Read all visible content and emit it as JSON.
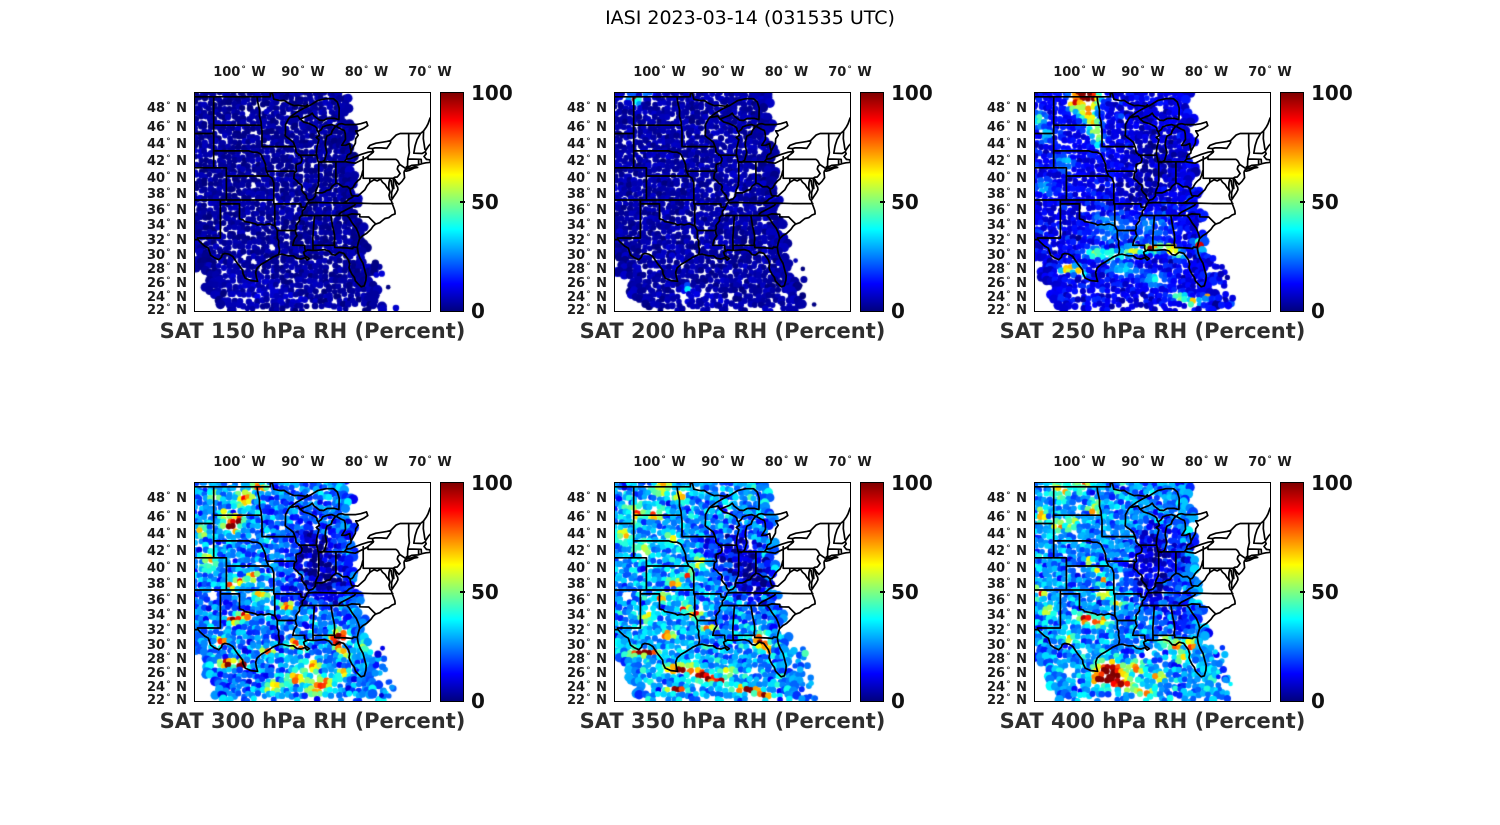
{
  "figure": {
    "title": "IASI 2023-03-14 (031535 UTC)",
    "background": "#ffffff",
    "text_color": "#000000",
    "border_color": "#000000"
  },
  "chart_data": {
    "type": "heatmap",
    "layout": "2 rows x 3 columns of geographic map panels",
    "projection": "mercator",
    "extent": {
      "lon_min": -107,
      "lon_max": -70,
      "lat_min": 21.6,
      "lat_max": 49.4
    },
    "lon_ticks": [
      100,
      90,
      80,
      70
    ],
    "lon_hemisphere": "W",
    "lat_ticks": [
      48,
      46,
      44,
      42,
      40,
      38,
      36,
      34,
      32,
      30,
      28,
      26,
      24,
      22
    ],
    "lat_hemisphere": "N",
    "units": "Percent",
    "colorbar": {
      "min": 0,
      "max": 100,
      "tick_labels": [
        "100",
        "50",
        "0"
      ],
      "colormap": "jet",
      "stops": [
        [
          0,
          "#00007f"
        ],
        [
          0.125,
          "#0000ff"
        ],
        [
          0.375,
          "#00ffff"
        ],
        [
          0.625,
          "#ffff00"
        ],
        [
          0.875,
          "#ff0000"
        ],
        [
          1,
          "#7f0000"
        ]
      ]
    },
    "swath": {
      "left_edge": {
        "a": -103.3,
        "b": -0.55,
        "c": 0.006
      },
      "right_edge": {
        "a": -77.8,
        "b": -0.31,
        "c": 0.0047
      },
      "bottom_lat": 21.8,
      "wave_amp": 0.7,
      "wave_freq": 1.9,
      "dot_spacing": 4.8,
      "dropout": 0.03
    },
    "panels": [
      {
        "level_hpa": "150",
        "title": "SAT 150 hPa RH (Percent)",
        "seed": 11,
        "base": 3,
        "noise": 1.5,
        "outliers": 8,
        "holes": [],
        "blobs": [
          [
            -97,
            24.5,
            3,
            1.5,
            5
          ],
          [
            -92,
            23.5,
            2.5,
            1,
            4
          ],
          [
            -101,
            26,
            2,
            1,
            4
          ]
        ]
      },
      {
        "level_hpa": "200",
        "title": "SAT 200 hPa RH (Percent)",
        "seed": 22,
        "base": 4,
        "noise": 2,
        "outliers": 8,
        "holes": [],
        "blobs": [
          [
            -104.8,
            49,
            0.9,
            0.4,
            40
          ],
          [
            -103.9,
            48.7,
            0.35,
            0.25,
            85
          ],
          [
            -103.1,
            48.5,
            0.45,
            0.3,
            60
          ],
          [
            -101.6,
            49.2,
            0.8,
            0.3,
            35
          ],
          [
            -95.8,
            25,
            0.35,
            0.3,
            80
          ],
          [
            -94.5,
            23.8,
            2,
            0.8,
            6
          ],
          [
            -90.5,
            23.2,
            1.5,
            0.7,
            5
          ]
        ]
      },
      {
        "level_hpa": "250",
        "title": "SAT 250 hPa RH (Percent)",
        "seed": 33,
        "base": 11,
        "noise": 6,
        "outliers": 22,
        "holes": [
          [
            -100.2,
            24.2,
            0.6
          ]
        ],
        "blobs": [
          [
            -99.6,
            49.5,
            1.7,
            0.8,
            95
          ],
          [
            -98.2,
            48.7,
            1.3,
            0.8,
            88
          ],
          [
            -100.8,
            48.2,
            1,
            0.6,
            72
          ],
          [
            -98.8,
            47.2,
            1.2,
            0.8,
            62
          ],
          [
            -97.7,
            45.8,
            0.9,
            1.1,
            55
          ],
          [
            -97,
            44.3,
            0.7,
            0.8,
            38
          ],
          [
            -106.3,
            46.5,
            0.9,
            0.7,
            40
          ],
          [
            -105.2,
            44.8,
            0.9,
            0.7,
            28
          ],
          [
            -102.3,
            41.6,
            1.5,
            1,
            20
          ],
          [
            -105.6,
            38.6,
            1.2,
            1,
            22
          ],
          [
            -97.6,
            29.9,
            1.6,
            0.6,
            42
          ],
          [
            -94.6,
            29.6,
            1.8,
            0.6,
            48
          ],
          [
            -91.6,
            30.3,
            1.4,
            0.55,
            55
          ],
          [
            -89.2,
            30.4,
            0.8,
            0.45,
            90
          ],
          [
            -87.7,
            30.6,
            1.1,
            0.5,
            60
          ],
          [
            -85.4,
            30.5,
            0.9,
            0.5,
            88
          ],
          [
            -84.3,
            29.6,
            0.8,
            0.5,
            55
          ],
          [
            -80.9,
            30.9,
            0.9,
            0.6,
            80
          ],
          [
            -101.3,
            27.7,
            1.4,
            0.4,
            92
          ],
          [
            -99.9,
            27.1,
            0.8,
            0.4,
            60
          ],
          [
            -93,
            27.6,
            2,
            0.9,
            28
          ],
          [
            -88,
            26.2,
            2,
            0.9,
            26
          ],
          [
            -84.2,
            23.6,
            1.2,
            0.6,
            52
          ],
          [
            -81.9,
            22.9,
            0.9,
            0.5,
            68
          ],
          [
            -79.8,
            23.8,
            0.5,
            0.4,
            70
          ],
          [
            -95,
            33.5,
            3,
            2,
            16
          ],
          [
            -88.5,
            33.5,
            3,
            2,
            14
          ],
          [
            -88,
            42,
            4,
            4,
            -7
          ],
          [
            -91,
            37.5,
            3,
            3,
            -5
          ]
        ]
      },
      {
        "level_hpa": "300",
        "title": "SAT 300 hPa RH (Percent)",
        "seed": 44,
        "base": 24,
        "noise": 13,
        "outliers": 25,
        "holes": [
          [
            -104.6,
            36.3,
            0.7
          ],
          [
            -95.2,
            34.9,
            0.5
          ],
          [
            -100.2,
            48.9,
            0.5
          ]
        ],
        "blobs": [
          [
            -101.3,
            44.7,
            1,
            0.8,
            85
          ],
          [
            -100.1,
            45.4,
            0.8,
            0.6,
            68
          ],
          [
            -102.4,
            45.9,
            0.7,
            0.5,
            58
          ],
          [
            -99.2,
            47.7,
            1.2,
            0.8,
            60
          ],
          [
            -96.9,
            49,
            1,
            0.6,
            52
          ],
          [
            -103.9,
            48,
            0.8,
            0.6,
            48
          ],
          [
            -105.9,
            44.1,
            0.9,
            0.8,
            42
          ],
          [
            -104.6,
            40.6,
            1,
            1.2,
            38
          ],
          [
            -97.9,
            38.7,
            0.7,
            0.5,
            70
          ],
          [
            -99.9,
            38.1,
            0.8,
            0.5,
            62
          ],
          [
            -101.6,
            37.5,
            0.9,
            0.5,
            55
          ],
          [
            -92.5,
            34.8,
            1,
            0.6,
            70
          ],
          [
            -96.6,
            36.3,
            1.1,
            0.6,
            50
          ],
          [
            -100.8,
            33.2,
            0.9,
            0.5,
            85
          ],
          [
            -99.3,
            33.6,
            0.8,
            0.5,
            75
          ],
          [
            -102.9,
            30.1,
            1,
            0.5,
            58
          ],
          [
            -101.6,
            27,
            1.7,
            0.45,
            95
          ],
          [
            -99.6,
            26.9,
            1,
            0.45,
            82
          ],
          [
            -95.6,
            28.7,
            1.2,
            0.6,
            52
          ],
          [
            -91.6,
            29.9,
            1,
            0.5,
            70
          ],
          [
            -90.4,
            29.4,
            0.8,
            0.45,
            58
          ],
          [
            -84.3,
            30.8,
            1.2,
            0.8,
            92
          ],
          [
            -84.3,
            29.7,
            0.7,
            0.6,
            82
          ],
          [
            -83.4,
            28.4,
            0.8,
            0.6,
            58
          ],
          [
            -79.8,
            29.3,
            0.8,
            0.6,
            70
          ],
          [
            -88.6,
            26.6,
            1.5,
            0.8,
            52
          ],
          [
            -91,
            24.9,
            1.8,
            0.7,
            58
          ],
          [
            -86.6,
            24.3,
            1.5,
            0.7,
            62
          ],
          [
            -88,
            23.2,
            1.5,
            0.6,
            55
          ],
          [
            -83.6,
            25.6,
            1,
            0.6,
            52
          ],
          [
            -94.6,
            23.6,
            1.5,
            0.7,
            52
          ],
          [
            -88.5,
            41.5,
            3.5,
            3.5,
            -20
          ],
          [
            -85.5,
            38,
            3,
            3,
            -18
          ],
          [
            -91,
            36.5,
            2.5,
            2,
            -10
          ],
          [
            -93.6,
            30.9,
            1.5,
            1,
            -13
          ],
          [
            -97.6,
            24.6,
            2,
            1,
            -8
          ],
          [
            -102,
            35.6,
            1.5,
            1.5,
            -10
          ]
        ]
      },
      {
        "level_hpa": "350",
        "title": "SAT 350 hPa RH (Percent)",
        "seed": 55,
        "base": 27,
        "noise": 14,
        "outliers": 25,
        "holes": [
          [
            -105,
            36.1,
            0.8
          ],
          [
            -93.2,
            34.9,
            0.5
          ],
          [
            -101.8,
            23.7,
            0.7
          ],
          [
            -96.2,
            29.4,
            0.5
          ]
        ],
        "blobs": [
          [
            -99.6,
            49,
            1.2,
            0.7,
            50
          ],
          [
            -96.6,
            48.1,
            1,
            0.6,
            46
          ],
          [
            -103.6,
            46.3,
            1.2,
            0.8,
            52
          ],
          [
            -100.7,
            46,
            0.9,
            0.6,
            56
          ],
          [
            -105.6,
            43.6,
            0.9,
            0.9,
            44
          ],
          [
            -102.6,
            42.1,
            1.2,
            1,
            36
          ],
          [
            -97.9,
            43.1,
            0.9,
            0.7,
            42
          ],
          [
            -93.7,
            40.4,
            0.7,
            0.5,
            68
          ],
          [
            -95.4,
            39,
            0.8,
            0.5,
            55
          ],
          [
            -97.4,
            37.9,
            0.9,
            0.5,
            58
          ],
          [
            -99.6,
            36,
            1,
            0.5,
            52
          ],
          [
            -101.9,
            33.6,
            0.9,
            0.5,
            46
          ],
          [
            -96.1,
            34.7,
            0.8,
            0.5,
            70
          ],
          [
            -94.4,
            33.7,
            0.8,
            0.5,
            72
          ],
          [
            -92.6,
            32,
            1,
            0.5,
            56
          ],
          [
            -98.9,
            31.1,
            1.2,
            0.5,
            60
          ],
          [
            -84,
            30.3,
            1,
            0.8,
            85
          ],
          [
            -83,
            29.1,
            0.7,
            0.6,
            58
          ],
          [
            -102.5,
            28.6,
            2.2,
            0.5,
            88
          ],
          [
            -96.5,
            26.3,
            2.4,
            0.55,
            85
          ],
          [
            -91.5,
            24.7,
            2.2,
            0.5,
            80
          ],
          [
            -86.5,
            23.3,
            2,
            0.5,
            78
          ],
          [
            -97.4,
            23.3,
            1.5,
            0.5,
            72
          ],
          [
            -83.6,
            22.5,
            1.2,
            0.5,
            72
          ],
          [
            -93.6,
            25.5,
            1.3,
            0.45,
            82
          ],
          [
            -89,
            25.9,
            1.1,
            0.5,
            55
          ],
          [
            -87.5,
            41,
            3.5,
            3.5,
            -20
          ],
          [
            -84.5,
            37.5,
            2.5,
            3,
            -18
          ],
          [
            -92.5,
            42.5,
            1.5,
            1.5,
            -12
          ],
          [
            -90.5,
            33.5,
            2,
            1.5,
            -8
          ],
          [
            -105,
            36.2,
            1,
            1,
            -14
          ]
        ]
      },
      {
        "level_hpa": "400",
        "title": "SAT 400 hPa RH (Percent)",
        "seed": 66,
        "base": 26,
        "noise": 13,
        "outliers": 25,
        "holes": [
          [
            -101.5,
            25.8,
            0.8
          ],
          [
            -99.3,
            28.6,
            0.6
          ],
          [
            -93.2,
            22.9,
            0.7
          ],
          [
            -88.9,
            28.2,
            0.8
          ],
          [
            -85.9,
            27.5,
            0.7
          ]
        ],
        "blobs": [
          [
            -103,
            48.6,
            1.5,
            0.8,
            42
          ],
          [
            -99.6,
            49.4,
            1.2,
            0.6,
            46
          ],
          [
            -105.9,
            45.9,
            0.8,
            0.8,
            50
          ],
          [
            -103.3,
            44.7,
            0.8,
            0.6,
            64
          ],
          [
            -101.1,
            45,
            0.7,
            0.5,
            56
          ],
          [
            -97.6,
            46.6,
            1,
            0.8,
            36
          ],
          [
            -106.2,
            36.7,
            0.8,
            0.7,
            62
          ],
          [
            -104.9,
            34.3,
            0.9,
            0.6,
            46
          ],
          [
            -98.5,
            40.5,
            0.6,
            0.4,
            55
          ],
          [
            -97.3,
            39.3,
            0.6,
            0.4,
            58
          ],
          [
            -96.2,
            38.2,
            0.6,
            0.4,
            55
          ],
          [
            -95.9,
            36.4,
            0.9,
            0.5,
            52
          ],
          [
            -93.9,
            35.3,
            0.8,
            0.5,
            48
          ],
          [
            -99.1,
            33.2,
            1,
            0.6,
            75
          ],
          [
            -97.4,
            32.7,
            0.9,
            0.5,
            70
          ],
          [
            -95.7,
            33,
            0.8,
            0.5,
            65
          ],
          [
            -101.6,
            30.6,
            0.9,
            0.5,
            52
          ],
          [
            -95.3,
            26.2,
            1.9,
            1.2,
            85
          ],
          [
            -94.1,
            24.8,
            1.6,
            1,
            78
          ],
          [
            -96.9,
            24.7,
            1.2,
            0.8,
            68
          ],
          [
            -92.6,
            23.7,
            1.2,
            0.6,
            62
          ],
          [
            -89.6,
            22.9,
            1.3,
            0.6,
            58
          ],
          [
            -90.9,
            26.5,
            1.2,
            0.7,
            52
          ],
          [
            -87.6,
            25.1,
            1.2,
            0.6,
            48
          ],
          [
            -82.4,
            29.7,
            0.8,
            0.7,
            80
          ],
          [
            -84.6,
            29.4,
            0.7,
            0.6,
            68
          ],
          [
            -83.9,
            27.9,
            0.8,
            0.6,
            52
          ],
          [
            -86.1,
            30.1,
            1,
            0.6,
            44
          ],
          [
            -86.5,
            40.5,
            3.5,
            4,
            -18
          ],
          [
            -89,
            36.5,
            2.5,
            2.5,
            -14
          ],
          [
            -84,
            33.5,
            2,
            2.5,
            -12
          ],
          [
            -91.5,
            39.5,
            2,
            2,
            -10
          ],
          [
            -89.5,
            42.5,
            2,
            2,
            -10
          ],
          [
            -99,
            39.5,
            2,
            2,
            -6
          ],
          [
            -92.6,
            28.9,
            1.5,
            1,
            -10
          ]
        ]
      }
    ]
  }
}
